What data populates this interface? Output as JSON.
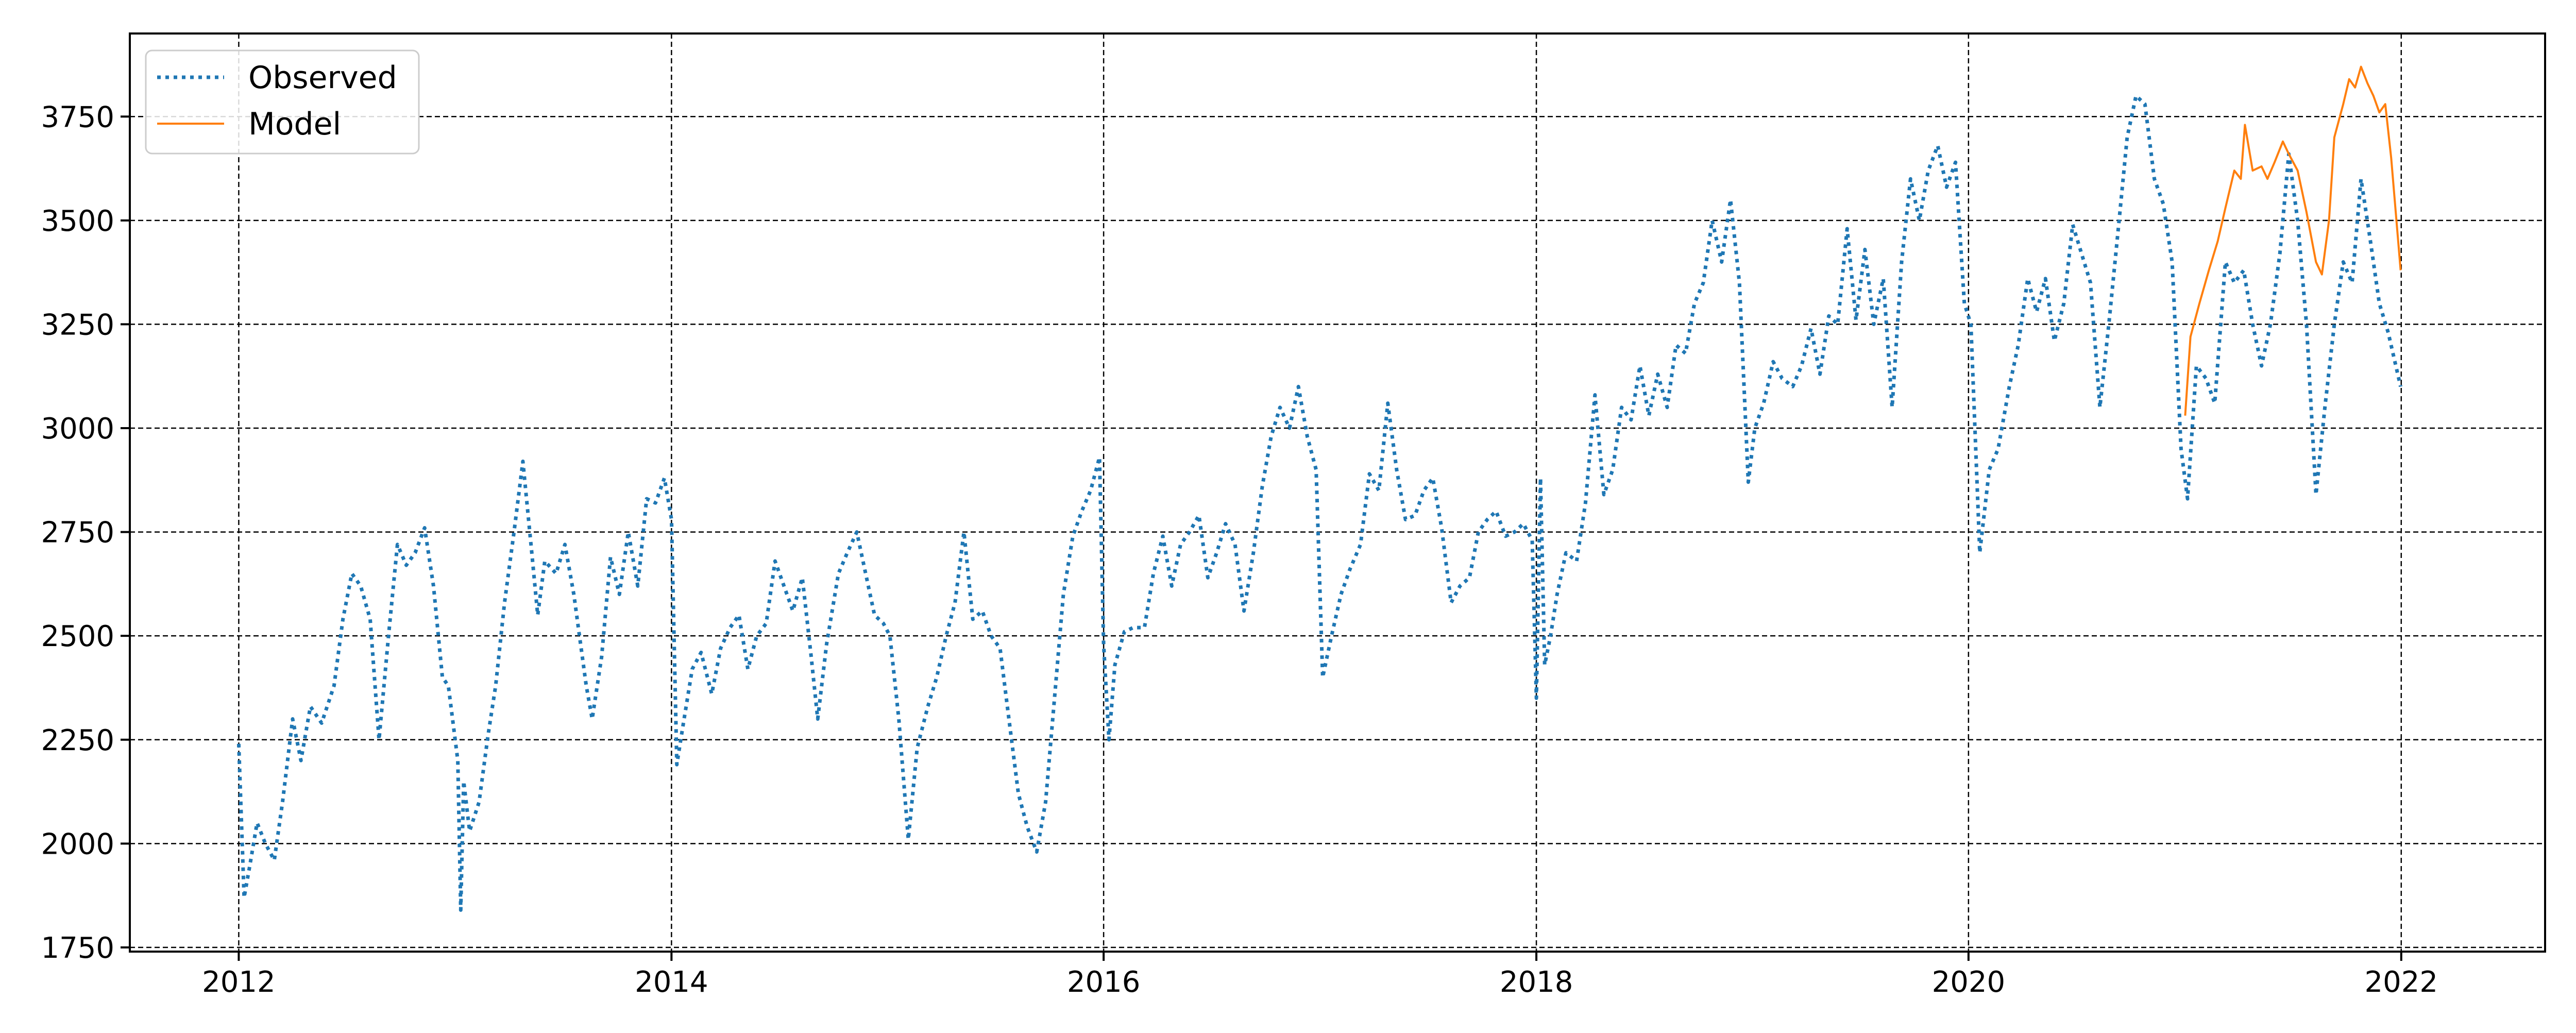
{
  "chart_data": {
    "type": "line",
    "title": "",
    "xlabel": "",
    "ylabel": "",
    "xlim": [
      "2011-07-01",
      "2022-09-01"
    ],
    "ylim": [
      1740,
      3950
    ],
    "x_ticks": [
      "2012",
      "2014",
      "2016",
      "2018",
      "2020",
      "2022"
    ],
    "y_ticks": [
      1750,
      2000,
      2250,
      2500,
      2750,
      3000,
      3250,
      3500,
      3750
    ],
    "grid": true,
    "legend": {
      "position": "top-left",
      "entries": [
        "Observed",
        "Model"
      ]
    },
    "colors": {
      "observed": "#1f77b4",
      "model": "#ff7f0e",
      "grid": "#000000"
    },
    "series": [
      {
        "name": "Observed",
        "style": "dotted",
        "points": [
          [
            "2012-01-01",
            2240
          ],
          [
            "2012-01-10",
            1870
          ],
          [
            "2012-01-20",
            1950
          ],
          [
            "2012-02-01",
            2050
          ],
          [
            "2012-02-15",
            2000
          ],
          [
            "2012-03-01",
            1960
          ],
          [
            "2012-03-15",
            2100
          ],
          [
            "2012-04-01",
            2300
          ],
          [
            "2012-04-15",
            2200
          ],
          [
            "2012-05-01",
            2330
          ],
          [
            "2012-05-20",
            2290
          ],
          [
            "2012-06-10",
            2380
          ],
          [
            "2012-06-25",
            2540
          ],
          [
            "2012-07-10",
            2650
          ],
          [
            "2012-07-25",
            2620
          ],
          [
            "2012-08-10",
            2540
          ],
          [
            "2012-08-25",
            2250
          ],
          [
            "2012-09-10",
            2500
          ],
          [
            "2012-09-25",
            2720
          ],
          [
            "2012-10-10",
            2670
          ],
          [
            "2012-10-25",
            2700
          ],
          [
            "2012-11-10",
            2760
          ],
          [
            "2012-11-25",
            2620
          ],
          [
            "2012-12-10",
            2400
          ],
          [
            "2012-12-20",
            2380
          ],
          [
            "2013-01-05",
            2200
          ],
          [
            "2013-01-10",
            1840
          ],
          [
            "2013-01-15",
            2150
          ],
          [
            "2013-01-25",
            2030
          ],
          [
            "2013-02-10",
            2100
          ],
          [
            "2013-02-25",
            2260
          ],
          [
            "2013-03-10",
            2380
          ],
          [
            "2013-03-25",
            2580
          ],
          [
            "2013-04-10",
            2750
          ],
          [
            "2013-04-25",
            2920
          ],
          [
            "2013-05-10",
            2700
          ],
          [
            "2013-05-20",
            2550
          ],
          [
            "2013-06-01",
            2680
          ],
          [
            "2013-06-20",
            2650
          ],
          [
            "2013-07-05",
            2720
          ],
          [
            "2013-07-20",
            2600
          ],
          [
            "2013-08-10",
            2380
          ],
          [
            "2013-08-20",
            2300
          ],
          [
            "2013-09-05",
            2450
          ],
          [
            "2013-09-20",
            2690
          ],
          [
            "2013-10-05",
            2600
          ],
          [
            "2013-10-20",
            2750
          ],
          [
            "2013-11-05",
            2620
          ],
          [
            "2013-11-20",
            2830
          ],
          [
            "2013-12-05",
            2820
          ],
          [
            "2013-12-20",
            2880
          ],
          [
            "2014-01-01",
            2780
          ],
          [
            "2014-01-10",
            2190
          ],
          [
            "2014-01-20",
            2280
          ],
          [
            "2014-02-05",
            2420
          ],
          [
            "2014-02-20",
            2460
          ],
          [
            "2014-03-10",
            2360
          ],
          [
            "2014-03-25",
            2470
          ],
          [
            "2014-04-10",
            2520
          ],
          [
            "2014-04-25",
            2550
          ],
          [
            "2014-05-10",
            2420
          ],
          [
            "2014-05-25",
            2500
          ],
          [
            "2014-06-10",
            2530
          ],
          [
            "2014-06-25",
            2680
          ],
          [
            "2014-07-10",
            2620
          ],
          [
            "2014-07-25",
            2560
          ],
          [
            "2014-08-10",
            2640
          ],
          [
            "2014-08-25",
            2450
          ],
          [
            "2014-09-05",
            2300
          ],
          [
            "2014-09-20",
            2480
          ],
          [
            "2014-10-10",
            2650
          ],
          [
            "2014-10-25",
            2700
          ],
          [
            "2014-11-10",
            2750
          ],
          [
            "2014-11-25",
            2650
          ],
          [
            "2014-12-10",
            2550
          ],
          [
            "2014-12-25",
            2530
          ],
          [
            "2015-01-05",
            2500
          ],
          [
            "2015-01-20",
            2300
          ],
          [
            "2015-02-05",
            2010
          ],
          [
            "2015-02-20",
            2230
          ],
          [
            "2015-03-10",
            2330
          ],
          [
            "2015-03-25",
            2400
          ],
          [
            "2015-04-10",
            2500
          ],
          [
            "2015-04-25",
            2580
          ],
          [
            "2015-05-10",
            2750
          ],
          [
            "2015-05-25",
            2540
          ],
          [
            "2015-06-10",
            2560
          ],
          [
            "2015-06-25",
            2500
          ],
          [
            "2015-07-10",
            2470
          ],
          [
            "2015-07-25",
            2300
          ],
          [
            "2015-08-10",
            2120
          ],
          [
            "2015-08-25",
            2040
          ],
          [
            "2015-09-10",
            1980
          ],
          [
            "2015-09-25",
            2100
          ],
          [
            "2015-10-10",
            2350
          ],
          [
            "2015-10-25",
            2600
          ],
          [
            "2015-11-10",
            2740
          ],
          [
            "2015-11-25",
            2800
          ],
          [
            "2015-12-10",
            2850
          ],
          [
            "2015-12-25",
            2930
          ],
          [
            "2016-01-01",
            2480
          ],
          [
            "2016-01-10",
            2250
          ],
          [
            "2016-01-20",
            2430
          ],
          [
            "2016-02-05",
            2510
          ],
          [
            "2016-02-20",
            2520
          ],
          [
            "2016-03-10",
            2520
          ],
          [
            "2016-03-25",
            2650
          ],
          [
            "2016-04-10",
            2740
          ],
          [
            "2016-04-25",
            2620
          ],
          [
            "2016-05-10",
            2720
          ],
          [
            "2016-05-25",
            2750
          ],
          [
            "2016-06-10",
            2790
          ],
          [
            "2016-06-25",
            2640
          ],
          [
            "2016-07-10",
            2700
          ],
          [
            "2016-07-25",
            2770
          ],
          [
            "2016-08-10",
            2720
          ],
          [
            "2016-08-25",
            2560
          ],
          [
            "2016-09-10",
            2700
          ],
          [
            "2016-09-25",
            2860
          ],
          [
            "2016-10-10",
            2980
          ],
          [
            "2016-10-25",
            3050
          ],
          [
            "2016-11-10",
            3000
          ],
          [
            "2016-11-25",
            3100
          ],
          [
            "2016-12-10",
            2980
          ],
          [
            "2016-12-25",
            2900
          ],
          [
            "2017-01-05",
            2400
          ],
          [
            "2017-01-20",
            2500
          ],
          [
            "2017-02-05",
            2600
          ],
          [
            "2017-02-20",
            2660
          ],
          [
            "2017-03-10",
            2720
          ],
          [
            "2017-03-25",
            2890
          ],
          [
            "2017-04-10",
            2850
          ],
          [
            "2017-04-25",
            3060
          ],
          [
            "2017-05-10",
            2900
          ],
          [
            "2017-05-25",
            2780
          ],
          [
            "2017-06-10",
            2790
          ],
          [
            "2017-06-25",
            2850
          ],
          [
            "2017-07-10",
            2880
          ],
          [
            "2017-07-25",
            2760
          ],
          [
            "2017-08-10",
            2580
          ],
          [
            "2017-08-25",
            2620
          ],
          [
            "2017-09-10",
            2640
          ],
          [
            "2017-09-25",
            2750
          ],
          [
            "2017-10-10",
            2780
          ],
          [
            "2017-10-25",
            2800
          ],
          [
            "2017-11-10",
            2740
          ],
          [
            "2017-11-25",
            2750
          ],
          [
            "2017-12-10",
            2770
          ],
          [
            "2017-12-25",
            2730
          ],
          [
            "2018-01-01",
            2350
          ],
          [
            "2018-01-08",
            2880
          ],
          [
            "2018-01-15",
            2430
          ],
          [
            "2018-01-25",
            2500
          ],
          [
            "2018-02-05",
            2600
          ],
          [
            "2018-02-20",
            2700
          ],
          [
            "2018-03-10",
            2680
          ],
          [
            "2018-03-25",
            2820
          ],
          [
            "2018-04-10",
            3080
          ],
          [
            "2018-04-25",
            2840
          ],
          [
            "2018-05-10",
            2900
          ],
          [
            "2018-05-25",
            3050
          ],
          [
            "2018-06-10",
            3020
          ],
          [
            "2018-06-25",
            3150
          ],
          [
            "2018-07-10",
            3030
          ],
          [
            "2018-07-25",
            3130
          ],
          [
            "2018-08-10",
            3050
          ],
          [
            "2018-08-25",
            3200
          ],
          [
            "2018-09-10",
            3180
          ],
          [
            "2018-09-25",
            3300
          ],
          [
            "2018-10-10",
            3350
          ],
          [
            "2018-10-25",
            3500
          ],
          [
            "2018-11-10",
            3400
          ],
          [
            "2018-11-25",
            3550
          ],
          [
            "2018-12-10",
            3350
          ],
          [
            "2018-12-25",
            2870
          ],
          [
            "2019-01-05",
            3000
          ],
          [
            "2019-01-20",
            3060
          ],
          [
            "2019-02-05",
            3160
          ],
          [
            "2019-02-20",
            3120
          ],
          [
            "2019-03-10",
            3100
          ],
          [
            "2019-03-25",
            3150
          ],
          [
            "2019-04-10",
            3240
          ],
          [
            "2019-04-25",
            3130
          ],
          [
            "2019-05-10",
            3270
          ],
          [
            "2019-05-25",
            3250
          ],
          [
            "2019-06-10",
            3480
          ],
          [
            "2019-06-25",
            3260
          ],
          [
            "2019-07-10",
            3430
          ],
          [
            "2019-07-25",
            3250
          ],
          [
            "2019-08-10",
            3360
          ],
          [
            "2019-08-25",
            3050
          ],
          [
            "2019-09-10",
            3400
          ],
          [
            "2019-09-25",
            3600
          ],
          [
            "2019-10-10",
            3500
          ],
          [
            "2019-10-25",
            3620
          ],
          [
            "2019-11-10",
            3680
          ],
          [
            "2019-11-25",
            3580
          ],
          [
            "2019-12-10",
            3640
          ],
          [
            "2019-12-25",
            3300
          ],
          [
            "2020-01-05",
            3250
          ],
          [
            "2020-01-20",
            2700
          ],
          [
            "2020-02-05",
            2900
          ],
          [
            "2020-02-20",
            2950
          ],
          [
            "2020-03-10",
            3100
          ],
          [
            "2020-03-25",
            3200
          ],
          [
            "2020-04-10",
            3360
          ],
          [
            "2020-04-25",
            3280
          ],
          [
            "2020-05-10",
            3360
          ],
          [
            "2020-05-25",
            3210
          ],
          [
            "2020-06-10",
            3300
          ],
          [
            "2020-06-25",
            3490
          ],
          [
            "2020-07-10",
            3420
          ],
          [
            "2020-07-25",
            3350
          ],
          [
            "2020-08-10",
            3050
          ],
          [
            "2020-08-25",
            3250
          ],
          [
            "2020-09-10",
            3480
          ],
          [
            "2020-09-25",
            3700
          ],
          [
            "2020-10-10",
            3800
          ],
          [
            "2020-10-25",
            3780
          ],
          [
            "2020-11-10",
            3600
          ],
          [
            "2020-11-25",
            3540
          ],
          [
            "2020-12-10",
            3400
          ],
          [
            "2020-12-25",
            2950
          ],
          [
            "2021-01-05",
            2830
          ],
          [
            "2021-01-20",
            3150
          ],
          [
            "2021-02-05",
            3120
          ],
          [
            "2021-02-20",
            3060
          ],
          [
            "2021-03-10",
            3400
          ],
          [
            "2021-03-25",
            3350
          ],
          [
            "2021-04-10",
            3380
          ],
          [
            "2021-04-25",
            3250
          ],
          [
            "2021-05-10",
            3150
          ],
          [
            "2021-05-25",
            3250
          ],
          [
            "2021-06-10",
            3420
          ],
          [
            "2021-06-25",
            3660
          ],
          [
            "2021-07-10",
            3500
          ],
          [
            "2021-07-25",
            3250
          ],
          [
            "2021-08-10",
            2840
          ],
          [
            "2021-08-25",
            3050
          ],
          [
            "2021-09-10",
            3250
          ],
          [
            "2021-09-25",
            3400
          ],
          [
            "2021-10-10",
            3350
          ],
          [
            "2021-10-25",
            3600
          ],
          [
            "2021-11-10",
            3450
          ],
          [
            "2021-11-25",
            3300
          ],
          [
            "2021-12-10",
            3230
          ],
          [
            "2021-12-31",
            3100
          ]
        ]
      },
      {
        "name": "Model",
        "style": "solid",
        "points": [
          [
            "2021-01-01",
            3030
          ],
          [
            "2021-01-10",
            3220
          ],
          [
            "2021-01-25",
            3300
          ],
          [
            "2021-02-10",
            3380
          ],
          [
            "2021-02-25",
            3450
          ],
          [
            "2021-03-10",
            3530
          ],
          [
            "2021-03-25",
            3620
          ],
          [
            "2021-04-05",
            3600
          ],
          [
            "2021-04-12",
            3730
          ],
          [
            "2021-04-25",
            3620
          ],
          [
            "2021-05-10",
            3630
          ],
          [
            "2021-05-20",
            3600
          ],
          [
            "2021-06-01",
            3640
          ],
          [
            "2021-06-15",
            3690
          ],
          [
            "2021-06-25",
            3660
          ],
          [
            "2021-07-10",
            3620
          ],
          [
            "2021-07-25",
            3520
          ],
          [
            "2021-08-10",
            3400
          ],
          [
            "2021-08-20",
            3370
          ],
          [
            "2021-09-01",
            3500
          ],
          [
            "2021-09-10",
            3700
          ],
          [
            "2021-09-25",
            3780
          ],
          [
            "2021-10-05",
            3840
          ],
          [
            "2021-10-15",
            3820
          ],
          [
            "2021-10-25",
            3870
          ],
          [
            "2021-11-05",
            3830
          ],
          [
            "2021-11-15",
            3800
          ],
          [
            "2021-11-25",
            3760
          ],
          [
            "2021-12-05",
            3780
          ],
          [
            "2021-12-15",
            3650
          ],
          [
            "2021-12-31",
            3380
          ]
        ]
      }
    ]
  }
}
